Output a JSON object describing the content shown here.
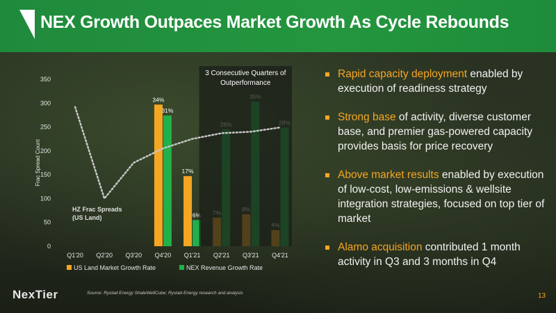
{
  "title": "NEX Growth Outpaces Market Growth As Cycle Rebounds",
  "colors": {
    "header_green": "#24963f",
    "accent_orange": "#f5a623",
    "nex_green": "#22b04a",
    "market_orange": "#f5a623"
  },
  "chart_data": {
    "type": "bar",
    "ylabel": "Frac Spread Count",
    "ylim": [
      0,
      350
    ],
    "yticks": [
      0,
      50,
      100,
      150,
      200,
      250,
      300,
      350
    ],
    "categories": [
      "Q1'20",
      "Q2'20",
      "Q3'20",
      "Q4'20",
      "Q1'21",
      "Q2'21",
      "Q3'21",
      "Q4'21"
    ],
    "series": [
      {
        "name": "US Land Market Growth Rate",
        "color": "#f5a623",
        "values": [
          null,
          null,
          null,
          297,
          147,
          60,
          67,
          34
        ],
        "labels": [
          "",
          "",
          "",
          "34%",
          "17%",
          "7%",
          "8%",
          "4%"
        ]
      },
      {
        "name": "NEX Revenue Growth Rate",
        "color": "#22b04a",
        "values": [
          null,
          null,
          null,
          274,
          55,
          245,
          303,
          249
        ],
        "labels": [
          "",
          "",
          "",
          "31%",
          "6%",
          "28%",
          "35%",
          "28%"
        ]
      }
    ],
    "line": {
      "name": "HZ Frac Spreads (US Land)",
      "style": "dotted",
      "color": "#c8c8c8",
      "values": [
        292,
        100,
        175,
        205,
        225,
        237,
        240,
        249
      ]
    },
    "line_label": [
      "HZ Frac Spreads",
      "(US Land)"
    ],
    "annotation": [
      "3 Consecutive Quarters of",
      "Outperformance"
    ]
  },
  "bullets": [
    {
      "highlight": "Rapid capacity deployment",
      "rest": " enabled by execution of readiness strategy"
    },
    {
      "highlight": "Strong base",
      "rest": " of activity, diverse customer base, and premier gas-powered capacity provides basis for price recovery"
    },
    {
      "highlight": "Above market results",
      "rest": " enabled by execution of low-cost, low-emissions & wellsite integration strategies, focused on top tier of market"
    },
    {
      "highlight": "Alamo acquisition",
      "rest": " contributed 1 month activity in Q3 and 3 months in Q4"
    }
  ],
  "footer": {
    "logo": "NexTier",
    "source": "Source: Rystad Energy ShaleWellCube; Rystad Energy research and analysis",
    "page": "13"
  }
}
